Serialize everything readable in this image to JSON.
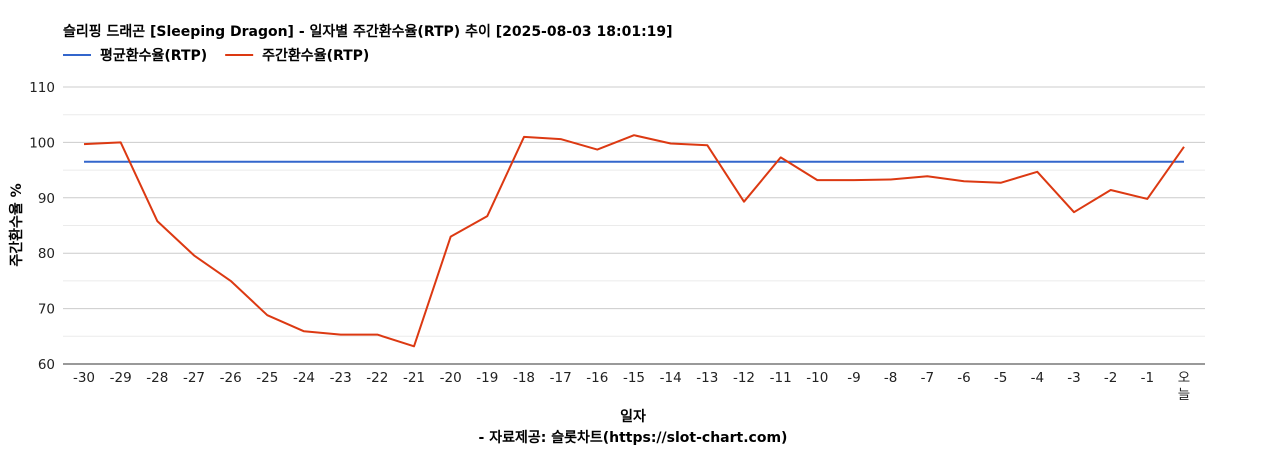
{
  "chart_data": {
    "type": "line",
    "title": "슬리핑 드래곤 [Sleeping Dragon] - 일자별 주간환수율(RTP) 추이 [2025-08-03 18:01:19]",
    "xlabel": "일자",
    "ylabel": "주간환수율 %",
    "source": "- 자료제공: 슬롯차트(https://slot-chart.com)",
    "ylim": [
      60,
      110
    ],
    "yticks": [
      "60",
      "70",
      "80",
      "90",
      "100",
      "110"
    ],
    "ytick_values": [
      60,
      70,
      80,
      90,
      100,
      110
    ],
    "grid": true,
    "legend_position": "top-left",
    "categories": [
      "-30",
      "-29",
      "-28",
      "-27",
      "-26",
      "-25",
      "-24",
      "-23",
      "-22",
      "-21",
      "-20",
      "-19",
      "-18",
      "-17",
      "-16",
      "-15",
      "-14",
      "-13",
      "-12",
      "-11",
      "-10",
      "-9",
      "-8",
      "-7",
      "-6",
      "-5",
      "-4",
      "-3",
      "-2",
      "-1",
      "오늘"
    ],
    "series": [
      {
        "name": "평균환수율(RTP)",
        "color": "#3366cc",
        "values": [
          96.5,
          96.5,
          96.5,
          96.5,
          96.5,
          96.5,
          96.5,
          96.5,
          96.5,
          96.5,
          96.5,
          96.5,
          96.5,
          96.5,
          96.5,
          96.5,
          96.5,
          96.5,
          96.5,
          96.5,
          96.5,
          96.5,
          96.5,
          96.5,
          96.5,
          96.5,
          96.5,
          96.5,
          96.5,
          96.5,
          96.5
        ]
      },
      {
        "name": "주간환수율(RTP)",
        "color": "#dc3912",
        "values": [
          99.7,
          100.0,
          85.8,
          79.6,
          75.0,
          68.8,
          65.9,
          65.3,
          65.3,
          63.2,
          83.0,
          86.7,
          101.0,
          100.6,
          98.7,
          101.3,
          99.8,
          99.5,
          89.3,
          97.3,
          93.2,
          93.2,
          93.3,
          93.9,
          93.0,
          92.7,
          94.7,
          87.4,
          91.4,
          89.8,
          99.2
        ]
      }
    ]
  }
}
